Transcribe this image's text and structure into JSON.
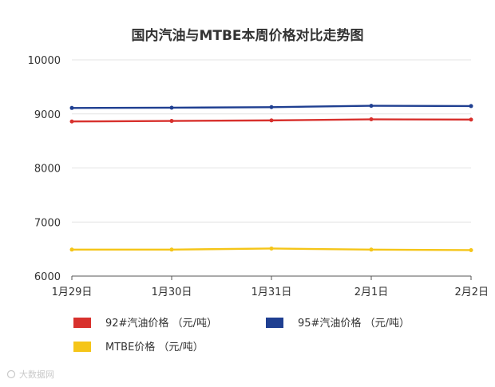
{
  "chart_data": {
    "type": "line",
    "title": "国内汽油与MTBE本周价格对比走势图",
    "xlabel": "",
    "ylabel": "",
    "categories": [
      "1月29日",
      "1月30日",
      "1月31日",
      "2月1日",
      "2月2日"
    ],
    "ylim": [
      6000,
      10000
    ],
    "yticks": [
      6000,
      7000,
      8000,
      9000,
      10000
    ],
    "grid": true,
    "legend_position": "bottom",
    "series": [
      {
        "name": "92#汽油价格 （元/吨）",
        "color": "#d8312d",
        "values": [
          8860,
          8870,
          8880,
          8900,
          8895
        ]
      },
      {
        "name": "95#汽油价格 （元/吨）",
        "color": "#1f3f91",
        "values": [
          9110,
          9115,
          9125,
          9150,
          9145
        ]
      },
      {
        "name": "MTBE价格 （元/吨）",
        "color": "#f5c518",
        "values": [
          6490,
          6490,
          6510,
          6490,
          6480
        ]
      }
    ]
  },
  "watermark": "大数据网"
}
